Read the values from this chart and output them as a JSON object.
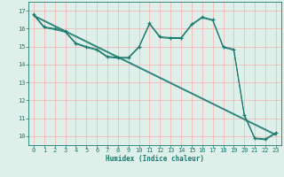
{
  "xlabel": "Humidex (Indice chaleur)",
  "bg_color": "#dff0ea",
  "grid_color": "#f5b8b8",
  "line_color": "#1a7a6e",
  "xlim": [
    -0.5,
    23.5
  ],
  "ylim": [
    9.5,
    17.5
  ],
  "xticks": [
    0,
    1,
    2,
    3,
    4,
    5,
    6,
    7,
    8,
    9,
    10,
    11,
    12,
    13,
    14,
    15,
    16,
    17,
    18,
    19,
    20,
    21,
    22,
    23
  ],
  "yticks": [
    10,
    11,
    12,
    13,
    14,
    15,
    16,
    17
  ],
  "lines": [
    {
      "x": [
        0,
        1,
        2,
        3,
        4,
        5,
        6,
        7,
        8,
        9,
        10,
        11,
        12,
        13,
        14,
        15,
        16,
        17,
        18,
        19,
        20,
        21,
        22,
        23
      ],
      "y": [
        16.8,
        16.1,
        16.0,
        15.85,
        15.2,
        15.0,
        14.85,
        14.45,
        14.4,
        14.4,
        15.0,
        16.3,
        15.55,
        15.5,
        15.5,
        16.25,
        16.65,
        16.5,
        15.0,
        14.85,
        11.2,
        9.9,
        9.85,
        10.2
      ],
      "marker": true
    },
    {
      "x": [
        0,
        1,
        2,
        3,
        4,
        5,
        6,
        7,
        8,
        9,
        10,
        11,
        12,
        13,
        14,
        15,
        16,
        17,
        18,
        19,
        20,
        21,
        22,
        23
      ],
      "y": [
        16.75,
        16.05,
        15.95,
        15.8,
        15.15,
        14.95,
        14.8,
        14.4,
        14.35,
        14.35,
        14.95,
        16.25,
        15.5,
        15.45,
        15.45,
        16.2,
        16.6,
        16.45,
        14.95,
        14.8,
        11.15,
        9.85,
        9.8,
        10.15
      ],
      "marker": false
    },
    {
      "x": [
        0,
        23
      ],
      "y": [
        16.75,
        10.1
      ],
      "marker": false
    },
    {
      "x": [
        0,
        23
      ],
      "y": [
        16.7,
        10.05
      ],
      "marker": false
    }
  ]
}
